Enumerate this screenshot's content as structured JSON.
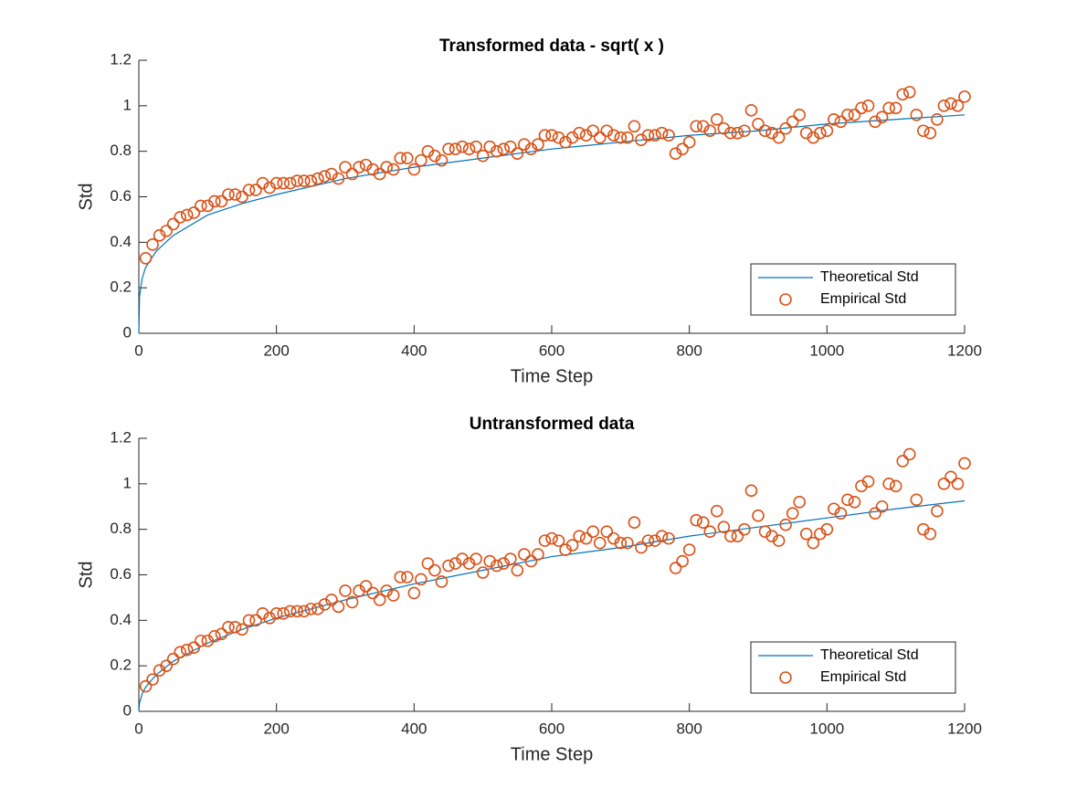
{
  "chart_data": [
    {
      "type": "line",
      "title": "Transformed data - sqrt( x )",
      "xlabel": "Time Step",
      "ylabel": "Std",
      "xlim": [
        0,
        1200
      ],
      "xticks": [
        0,
        200,
        400,
        600,
        800,
        1000,
        1200
      ],
      "ylim": [
        0,
        1.2
      ],
      "yticks": [
        0,
        0.2,
        0.4,
        0.6,
        0.8,
        1,
        1.2
      ],
      "legend": "southeast",
      "series": [
        {
          "name": "Theoretical Std",
          "type": "line",
          "color": "#0072BD",
          "x": [
            0,
            1,
            5,
            10,
            25,
            50,
            100,
            150,
            200,
            300,
            400,
            500,
            600,
            700,
            800,
            900,
            1000,
            1100,
            1200
          ],
          "values": [
            0,
            0.163,
            0.244,
            0.29,
            0.36,
            0.43,
            0.52,
            0.57,
            0.61,
            0.68,
            0.73,
            0.77,
            0.81,
            0.84,
            0.87,
            0.89,
            0.92,
            0.94,
            0.96
          ]
        },
        {
          "name": "Empirical Std",
          "type": "scatter",
          "color": "#D95319",
          "x": [
            10,
            20,
            30,
            40,
            50,
            60,
            70,
            80,
            90,
            100,
            110,
            120,
            130,
            140,
            150,
            160,
            170,
            180,
            190,
            200,
            210,
            220,
            230,
            240,
            250,
            260,
            270,
            280,
            290,
            300,
            310,
            320,
            330,
            340,
            350,
            360,
            370,
            380,
            390,
            400,
            410,
            420,
            430,
            440,
            450,
            460,
            470,
            480,
            490,
            500,
            510,
            520,
            530,
            540,
            550,
            560,
            570,
            580,
            590,
            600,
            610,
            620,
            630,
            640,
            650,
            660,
            670,
            680,
            690,
            700,
            710,
            720,
            730,
            740,
            750,
            760,
            770,
            780,
            790,
            800,
            810,
            820,
            830,
            840,
            850,
            860,
            870,
            880,
            890,
            900,
            910,
            920,
            930,
            940,
            950,
            960,
            970,
            980,
            990,
            1000,
            1010,
            1020,
            1030,
            1040,
            1050,
            1060,
            1070,
            1080,
            1090,
            1100,
            1110,
            1120,
            1130,
            1140,
            1150,
            1160,
            1170,
            1180,
            1190,
            1200
          ],
          "values": [
            0.33,
            0.39,
            0.43,
            0.45,
            0.48,
            0.51,
            0.52,
            0.53,
            0.56,
            0.56,
            0.58,
            0.58,
            0.61,
            0.61,
            0.6,
            0.63,
            0.63,
            0.66,
            0.64,
            0.66,
            0.66,
            0.66,
            0.67,
            0.67,
            0.67,
            0.68,
            0.69,
            0.7,
            0.68,
            0.73,
            0.7,
            0.73,
            0.74,
            0.72,
            0.7,
            0.73,
            0.72,
            0.77,
            0.77,
            0.72,
            0.76,
            0.8,
            0.78,
            0.76,
            0.81,
            0.81,
            0.82,
            0.81,
            0.82,
            0.78,
            0.82,
            0.8,
            0.81,
            0.82,
            0.79,
            0.83,
            0.81,
            0.83,
            0.87,
            0.87,
            0.86,
            0.84,
            0.86,
            0.88,
            0.87,
            0.89,
            0.86,
            0.89,
            0.87,
            0.86,
            0.86,
            0.91,
            0.85,
            0.87,
            0.87,
            0.88,
            0.87,
            0.79,
            0.81,
            0.84,
            0.91,
            0.91,
            0.89,
            0.94,
            0.9,
            0.88,
            0.88,
            0.89,
            0.98,
            0.92,
            0.89,
            0.88,
            0.86,
            0.9,
            0.93,
            0.96,
            0.88,
            0.86,
            0.88,
            0.89,
            0.94,
            0.93,
            0.96,
            0.96,
            0.99,
            1.0,
            0.93,
            0.95,
            0.99,
            0.99,
            1.05,
            1.06,
            0.96,
            0.89,
            0.88,
            0.94,
            1.0,
            1.01,
            1.0,
            1.04
          ]
        }
      ]
    },
    {
      "type": "line",
      "title": "Untransformed data",
      "xlabel": "Time Step",
      "ylabel": "Std",
      "xlim": [
        0,
        1200
      ],
      "xticks": [
        0,
        200,
        400,
        600,
        800,
        1000,
        1200
      ],
      "ylim": [
        0,
        1.2
      ],
      "yticks": [
        0,
        0.2,
        0.4,
        0.6,
        0.8,
        1,
        1.2
      ],
      "legend": "southeast",
      "series": [
        {
          "name": "Theoretical Std",
          "type": "line",
          "color": "#0072BD",
          "x": [
            0,
            1,
            5,
            10,
            25,
            50,
            100,
            150,
            200,
            300,
            400,
            500,
            600,
            700,
            800,
            900,
            1000,
            1100,
            1200
          ],
          "values": [
            0,
            0.038,
            0.078,
            0.107,
            0.16,
            0.22,
            0.3,
            0.36,
            0.41,
            0.49,
            0.56,
            0.62,
            0.68,
            0.72,
            0.77,
            0.81,
            0.85,
            0.89,
            0.925
          ]
        },
        {
          "name": "Empirical Std",
          "type": "scatter",
          "color": "#D95319",
          "x": [
            10,
            20,
            30,
            40,
            50,
            60,
            70,
            80,
            90,
            100,
            110,
            120,
            130,
            140,
            150,
            160,
            170,
            180,
            190,
            200,
            210,
            220,
            230,
            240,
            250,
            260,
            270,
            280,
            290,
            300,
            310,
            320,
            330,
            340,
            350,
            360,
            370,
            380,
            390,
            400,
            410,
            420,
            430,
            440,
            450,
            460,
            470,
            480,
            490,
            500,
            510,
            520,
            530,
            540,
            550,
            560,
            570,
            580,
            590,
            600,
            610,
            620,
            630,
            640,
            650,
            660,
            670,
            680,
            690,
            700,
            710,
            720,
            730,
            740,
            750,
            760,
            770,
            780,
            790,
            800,
            810,
            820,
            830,
            840,
            850,
            860,
            870,
            880,
            890,
            900,
            910,
            920,
            930,
            940,
            950,
            960,
            970,
            980,
            990,
            1000,
            1010,
            1020,
            1030,
            1040,
            1050,
            1060,
            1070,
            1080,
            1090,
            1100,
            1110,
            1120,
            1130,
            1140,
            1150,
            1160,
            1170,
            1180,
            1190,
            1200
          ],
          "values": [
            0.11,
            0.14,
            0.18,
            0.2,
            0.23,
            0.26,
            0.27,
            0.28,
            0.31,
            0.31,
            0.33,
            0.34,
            0.37,
            0.37,
            0.36,
            0.4,
            0.4,
            0.43,
            0.41,
            0.43,
            0.43,
            0.44,
            0.44,
            0.44,
            0.45,
            0.45,
            0.47,
            0.49,
            0.46,
            0.53,
            0.48,
            0.53,
            0.55,
            0.52,
            0.49,
            0.53,
            0.51,
            0.59,
            0.59,
            0.52,
            0.58,
            0.65,
            0.62,
            0.57,
            0.64,
            0.65,
            0.67,
            0.65,
            0.67,
            0.61,
            0.66,
            0.64,
            0.65,
            0.67,
            0.62,
            0.69,
            0.66,
            0.69,
            0.75,
            0.76,
            0.75,
            0.71,
            0.73,
            0.77,
            0.76,
            0.79,
            0.74,
            0.79,
            0.76,
            0.74,
            0.74,
            0.83,
            0.72,
            0.75,
            0.75,
            0.77,
            0.76,
            0.63,
            0.66,
            0.71,
            0.84,
            0.83,
            0.79,
            0.88,
            0.81,
            0.77,
            0.77,
            0.8,
            0.97,
            0.86,
            0.79,
            0.77,
            0.75,
            0.82,
            0.87,
            0.92,
            0.78,
            0.74,
            0.78,
            0.8,
            0.89,
            0.87,
            0.93,
            0.92,
            0.99,
            1.01,
            0.87,
            0.9,
            1.0,
            0.99,
            1.1,
            1.13,
            0.93,
            0.8,
            0.78,
            0.88,
            1.0,
            1.03,
            1.0,
            1.09
          ]
        }
      ]
    }
  ]
}
